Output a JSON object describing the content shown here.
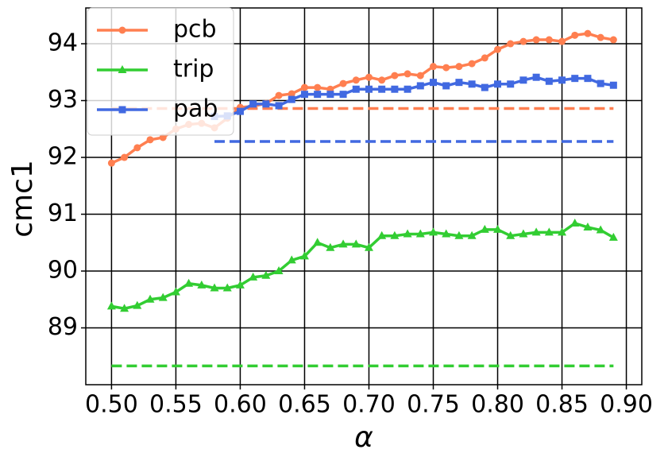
{
  "chart_data": {
    "type": "line",
    "xlabel": "α",
    "ylabel": "cmc1",
    "x": [
      0.5,
      0.51,
      0.52,
      0.53,
      0.54,
      0.55,
      0.56,
      0.57,
      0.58,
      0.59,
      0.6,
      0.61,
      0.62,
      0.63,
      0.64,
      0.65,
      0.66,
      0.67,
      0.68,
      0.69,
      0.7,
      0.71,
      0.72,
      0.73,
      0.74,
      0.75,
      0.76,
      0.77,
      0.78,
      0.79,
      0.8,
      0.81,
      0.82,
      0.83,
      0.84,
      0.85,
      0.86,
      0.87,
      0.88,
      0.89
    ],
    "series": [
      {
        "name": "pcb",
        "color": "#ff7f50",
        "marker": "circle",
        "values": [
          91.9,
          92.0,
          92.17,
          92.31,
          92.35,
          92.5,
          92.58,
          92.6,
          92.52,
          92.69,
          92.88,
          92.9,
          92.95,
          93.09,
          93.12,
          93.23,
          93.23,
          93.2,
          93.3,
          93.36,
          93.41,
          93.36,
          93.44,
          93.47,
          93.44,
          93.6,
          93.58,
          93.6,
          93.65,
          93.75,
          93.9,
          94.0,
          94.04,
          94.07,
          94.07,
          94.04,
          94.15,
          94.18,
          94.11,
          94.07
        ]
      },
      {
        "name": "trip",
        "color": "#32cd32",
        "marker": "triangle",
        "values": [
          89.38,
          89.34,
          89.39,
          89.5,
          89.53,
          89.63,
          89.78,
          89.75,
          89.7,
          89.7,
          89.75,
          89.89,
          89.92,
          90.0,
          90.19,
          90.26,
          90.5,
          90.41,
          90.47,
          90.47,
          90.41,
          90.62,
          90.62,
          90.65,
          90.65,
          90.68,
          90.65,
          90.62,
          90.62,
          90.73,
          90.73,
          90.62,
          90.65,
          90.68,
          90.68,
          90.68,
          90.84,
          90.77,
          90.72,
          90.59
        ]
      },
      {
        "name": "pab",
        "color": "#4169e1",
        "marker": "square",
        "values": [
          null,
          null,
          null,
          null,
          null,
          null,
          null,
          null,
          92.72,
          92.73,
          92.81,
          92.94,
          92.94,
          92.91,
          93.02,
          93.11,
          93.11,
          93.11,
          93.11,
          93.2,
          93.2,
          93.2,
          93.2,
          93.2,
          93.26,
          93.32,
          93.26,
          93.32,
          93.29,
          93.23,
          93.29,
          93.29,
          93.36,
          93.41,
          93.34,
          93.36,
          93.39,
          93.39,
          93.3,
          93.27
        ]
      }
    ],
    "baselines": [
      {
        "color": "#ff7f50",
        "value": 92.86,
        "xrange": [
          0.5,
          0.89
        ]
      },
      {
        "color": "#4169e1",
        "value": 92.28,
        "xrange": [
          0.58,
          0.89
        ]
      },
      {
        "color": "#32cd32",
        "value": 88.33,
        "xrange": [
          0.5,
          0.89
        ]
      }
    ],
    "xlim": [
      0.48,
      0.912
    ],
    "ylim": [
      88.0,
      94.63
    ],
    "xticks": [
      {
        "value": 0.5,
        "label": "0.50"
      },
      {
        "value": 0.55,
        "label": "0.55"
      },
      {
        "value": 0.6,
        "label": "0.60"
      },
      {
        "value": 0.65,
        "label": "0.65"
      },
      {
        "value": 0.7,
        "label": "0.70"
      },
      {
        "value": 0.75,
        "label": "0.75"
      },
      {
        "value": 0.8,
        "label": "0.80"
      },
      {
        "value": 0.85,
        "label": "0.85"
      },
      {
        "value": 0.9,
        "label": "0.90"
      }
    ],
    "yticks": [
      89,
      90,
      91,
      92,
      93,
      94
    ],
    "grid": true,
    "legend": "upper-left"
  }
}
